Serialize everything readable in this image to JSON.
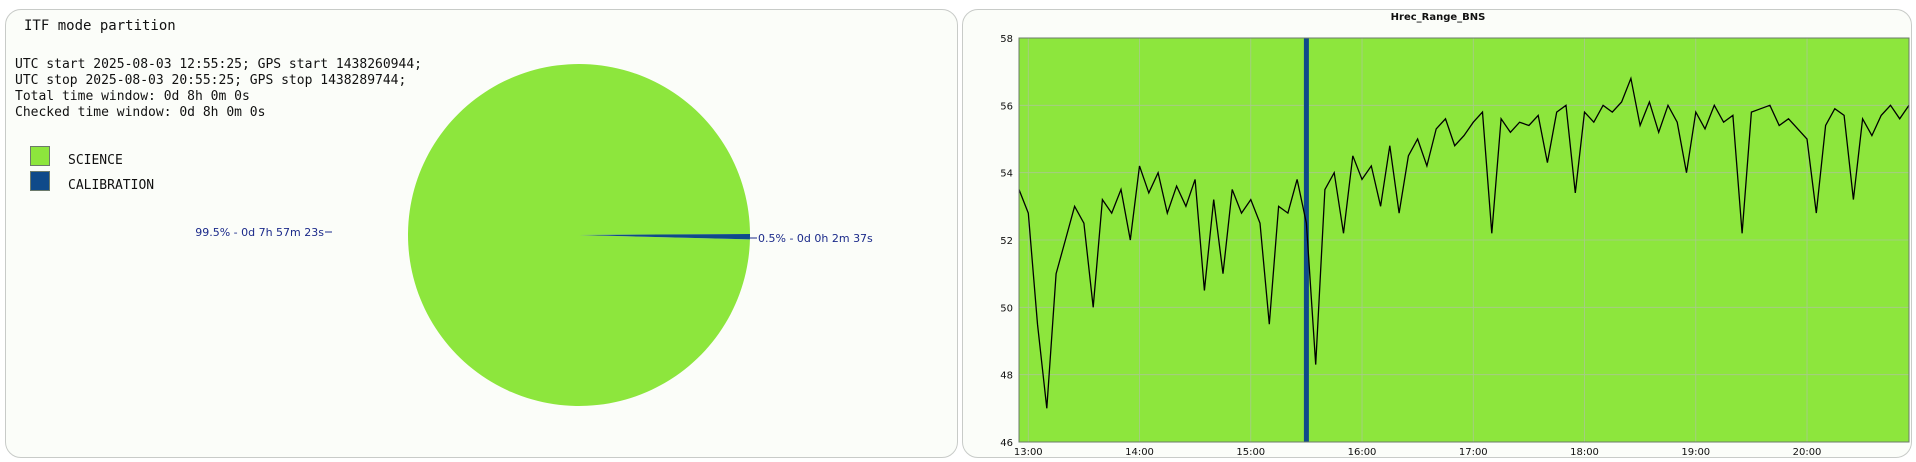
{
  "colors": {
    "science": "#8de63d",
    "calibration": "#0f4a8a",
    "pie_label": "#1b2a8a",
    "line": "#000000",
    "marker": "#0f4a8a",
    "grid": "#a9c98f"
  },
  "pie_panel": {
    "title": "ITF mode partition",
    "info_lines": [
      "UTC start 2025-08-03 12:55:25; GPS start 1438260944;",
      "UTC stop 2025-08-03 20:55:25; GPS stop 1438289744;",
      "Total time window: 0d 8h 0m 0s",
      "Checked time window: 0d 8h 0m 0s"
    ],
    "legend": [
      {
        "label": "SCIENCE"
      },
      {
        "label": "CALIBRATION"
      }
    ],
    "slice_labels": {
      "science": "99.5% - 0d 7h 57m 23s",
      "calibration": "0.5% - 0d 0h 2m 37s"
    }
  },
  "chart_data": [
    {
      "type": "pie",
      "categories": [
        "SCIENCE",
        "CALIBRATION"
      ],
      "values": [
        99.5,
        0.5
      ],
      "durations": [
        "0d 7h 57m 23s",
        "0d 0h 2m 37s"
      ]
    },
    {
      "type": "line",
      "title": "Hrec_Range_BNS",
      "xlabel": "",
      "ylabel": "",
      "xlim": [
        "12:55",
        "20:55"
      ],
      "ylim": [
        46,
        58
      ],
      "x_ticks": [
        "13:00",
        "14:00",
        "15:00",
        "16:00",
        "17:00",
        "18:00",
        "19:00",
        "20:00"
      ],
      "y_ticks": [
        46,
        48,
        50,
        52,
        54,
        56,
        58
      ],
      "grid": true,
      "calibration_marker_x": "15:30",
      "series": [
        {
          "x": [
            "12:55",
            "13:00",
            "13:05",
            "13:10",
            "13:15",
            "13:20",
            "13:25",
            "13:30",
            "13:35",
            "13:40",
            "13:45",
            "13:50",
            "13:55",
            "14:00",
            "14:05",
            "14:10",
            "14:15",
            "14:20",
            "14:25",
            "14:30",
            "14:35",
            "14:40",
            "14:45",
            "14:50",
            "14:55",
            "15:00",
            "15:05",
            "15:10",
            "15:15",
            "15:20",
            "15:25",
            "15:30",
            "15:35",
            "15:40",
            "15:45",
            "15:50",
            "15:55",
            "16:00",
            "16:05",
            "16:10",
            "16:15",
            "16:20",
            "16:25",
            "16:30",
            "16:35",
            "16:40",
            "16:45",
            "16:50",
            "16:55",
            "17:00",
            "17:05",
            "17:10",
            "17:15",
            "17:20",
            "17:25",
            "17:30",
            "17:35",
            "17:40",
            "17:45",
            "17:50",
            "17:55",
            "18:00",
            "18:05",
            "18:10",
            "18:15",
            "18:20",
            "18:25",
            "18:30",
            "18:35",
            "18:40",
            "18:45",
            "18:50",
            "18:55",
            "19:00",
            "19:05",
            "19:10",
            "19:15",
            "19:20",
            "19:25",
            "19:30",
            "19:35",
            "19:40",
            "19:45",
            "19:50",
            "19:55",
            "20:00",
            "20:05",
            "20:10",
            "20:15",
            "20:20",
            "20:25",
            "20:30",
            "20:35",
            "20:40",
            "20:45",
            "20:50",
            "20:55"
          ],
          "values": [
            53.5,
            52.8,
            49.5,
            47.0,
            51.0,
            52.0,
            53.0,
            52.5,
            50.0,
            53.2,
            52.8,
            53.5,
            52.0,
            54.2,
            53.4,
            54.0,
            52.8,
            53.6,
            53.0,
            53.8,
            50.5,
            53.2,
            51.0,
            53.5,
            52.8,
            53.2,
            52.5,
            49.5,
            53.0,
            52.8,
            53.8,
            52.5,
            48.3,
            53.5,
            54.0,
            52.2,
            54.5,
            53.8,
            54.2,
            53.0,
            54.8,
            52.8,
            54.5,
            55.0,
            54.2,
            55.3,
            55.6,
            54.8,
            55.1,
            55.5,
            55.8,
            52.2,
            55.6,
            55.2,
            55.5,
            55.4,
            55.7,
            54.3,
            55.8,
            56.0,
            53.4,
            55.8,
            55.5,
            56.0,
            55.8,
            56.1,
            56.8,
            55.4,
            56.1,
            55.2,
            56.0,
            55.5,
            54.0,
            55.8,
            55.3,
            56.0,
            55.5,
            55.7,
            52.2,
            55.8,
            55.9,
            56.0,
            55.4,
            55.6,
            55.3,
            55.0,
            52.8,
            55.4,
            55.9,
            55.7,
            53.2,
            55.6,
            55.1,
            55.7,
            56.0,
            55.6,
            56.0
          ]
        }
      ]
    }
  ]
}
